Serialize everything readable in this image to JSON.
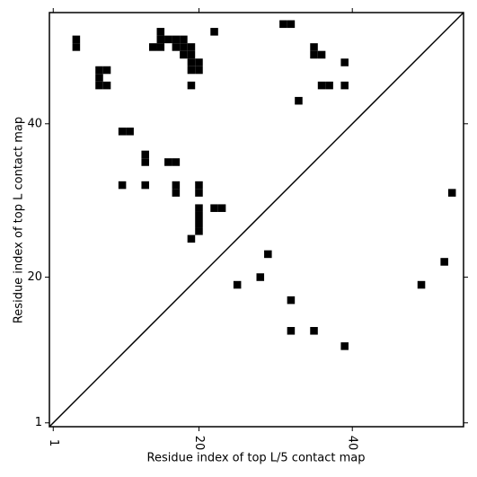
{
  "chart_data": {
    "type": "scatter",
    "marker": "square",
    "diagonal": true,
    "xlabel": "Residue index of top L/5 contact map",
    "ylabel": "Residue index of top L contact map",
    "xlim": [
      0.5,
      54.5
    ],
    "ylim": [
      0.5,
      54.5
    ],
    "xticks": [
      1,
      20,
      40
    ],
    "yticks": [
      1,
      20,
      40
    ],
    "series": [
      {
        "color": "#000000",
        "x": [
          4,
          4,
          7,
          8,
          7,
          7,
          8,
          15,
          15,
          14,
          15,
          16,
          17,
          18,
          17,
          18,
          19,
          18,
          19,
          19,
          20,
          19,
          20,
          22,
          31,
          32,
          35,
          35,
          36,
          39,
          19,
          36,
          37,
          39,
          33,
          10,
          11,
          13,
          13,
          16,
          17,
          10,
          13,
          17,
          17,
          20,
          20,
          20,
          20,
          20,
          20,
          22,
          23,
          19,
          29,
          25,
          28,
          32,
          32,
          35,
          39,
          49,
          52,
          53
        ],
        "y": [
          51,
          50,
          47,
          47,
          46,
          45,
          45,
          52,
          51,
          50,
          50,
          51,
          51,
          51,
          50,
          50,
          50,
          49,
          49,
          48,
          48,
          47,
          47,
          52,
          53,
          53,
          50,
          49,
          49,
          48,
          45,
          45,
          45,
          45,
          43,
          39,
          39,
          36,
          35,
          35,
          35,
          32,
          32,
          32,
          31,
          32,
          31,
          29,
          28,
          27,
          26,
          29,
          29,
          25,
          23,
          19,
          20,
          17,
          13,
          13,
          11,
          19,
          22,
          31
        ]
      }
    ]
  }
}
